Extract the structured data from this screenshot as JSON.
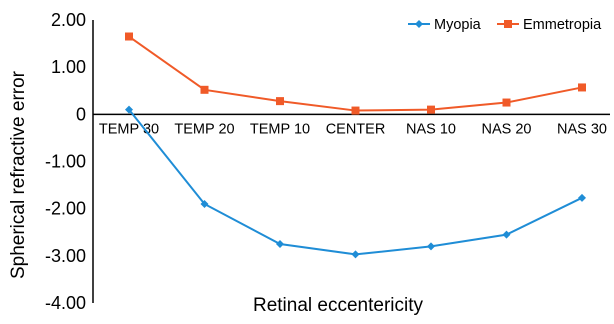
{
  "chart_data": {
    "type": "line",
    "categories": [
      "TEMP 30",
      "TEMP 20",
      "TEMP 10",
      "CENTER",
      "NAS 10",
      "NAS 20",
      "NAS 30"
    ],
    "series": [
      {
        "name": "Myopia",
        "color": "#1f8dd6",
        "marker": "diamond",
        "values": [
          0.1,
          -1.9,
          -2.75,
          -2.97,
          -2.8,
          -2.55,
          -1.77
        ]
      },
      {
        "name": "Emmetropia",
        "color": "#f05a28",
        "marker": "square",
        "values": [
          1.65,
          0.52,
          0.28,
          0.08,
          0.1,
          0.25,
          0.57
        ]
      }
    ],
    "xlabel": "Retinal eccentericity",
    "ylabel": "Spherical refractive error",
    "ylim": [
      -4.0,
      2.0
    ],
    "yticks": [
      "2.00",
      "1.00",
      "0",
      "-1.00",
      "-2.00",
      "-3.00",
      "-4.00"
    ],
    "ytick_values": [
      2,
      1,
      0,
      -1,
      -2,
      -3,
      -4
    ],
    "grid": false,
    "legend_position": "top-right"
  }
}
